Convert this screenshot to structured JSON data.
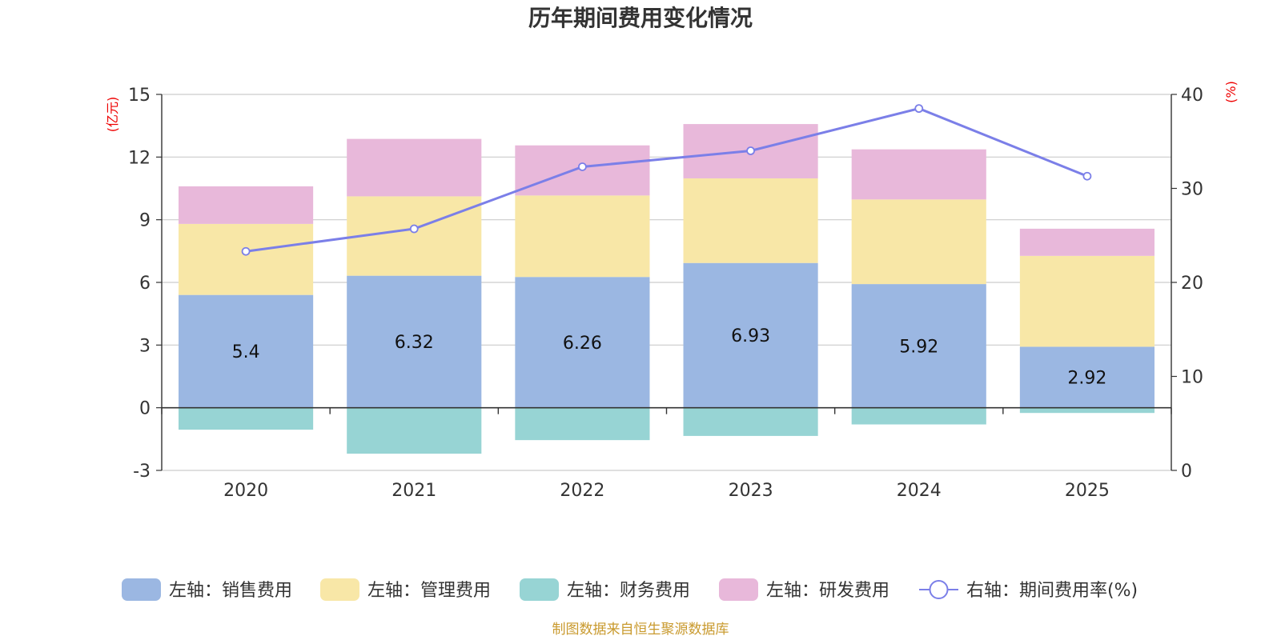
{
  "chart_data": {
    "type": "bar",
    "title": "历年期间费用变化情况",
    "categories": [
      "2020",
      "2021",
      "2022",
      "2023",
      "2024",
      "2025"
    ],
    "left_axis": {
      "unit": "(亿元)",
      "ylim": [
        -3,
        15
      ],
      "ticks": [
        -3,
        0,
        3,
        6,
        9,
        12,
        15
      ]
    },
    "right_axis": {
      "unit": "(%)",
      "ylim": [
        0,
        40
      ],
      "ticks": [
        0,
        10,
        20,
        30,
        40
      ]
    },
    "series": [
      {
        "name": "左轴：销售费用",
        "kind": "bar",
        "axis": "left",
        "color": "#9bb7e2",
        "values": [
          5.4,
          6.32,
          6.26,
          6.93,
          5.92,
          2.92
        ],
        "show_labels": true
      },
      {
        "name": "左轴：管理费用",
        "kind": "bar",
        "axis": "left",
        "color": "#f8e7a7",
        "values": [
          3.4,
          3.8,
          3.9,
          4.05,
          4.05,
          4.35
        ],
        "show_labels": false
      },
      {
        "name": "左轴：财务费用",
        "kind": "bar",
        "axis": "left",
        "color": "#97d4d4",
        "values": [
          -1.05,
          -2.2,
          -1.55,
          -1.35,
          -0.8,
          -0.25
        ],
        "show_labels": false
      },
      {
        "name": "左轴：研发费用",
        "kind": "bar",
        "axis": "left",
        "color": "#e8b8da",
        "values": [
          1.8,
          2.75,
          2.4,
          2.6,
          2.4,
          1.3
        ],
        "show_labels": false
      },
      {
        "name": "右轴：期间费用率(%)",
        "kind": "line",
        "axis": "right",
        "color": "#7b7fe8",
        "values": [
          23.3,
          25.7,
          32.3,
          34.0,
          38.5,
          31.3
        ]
      }
    ],
    "grid": true,
    "legend_position": "bottom"
  },
  "source_note": "制图数据来自恒生聚源数据库"
}
